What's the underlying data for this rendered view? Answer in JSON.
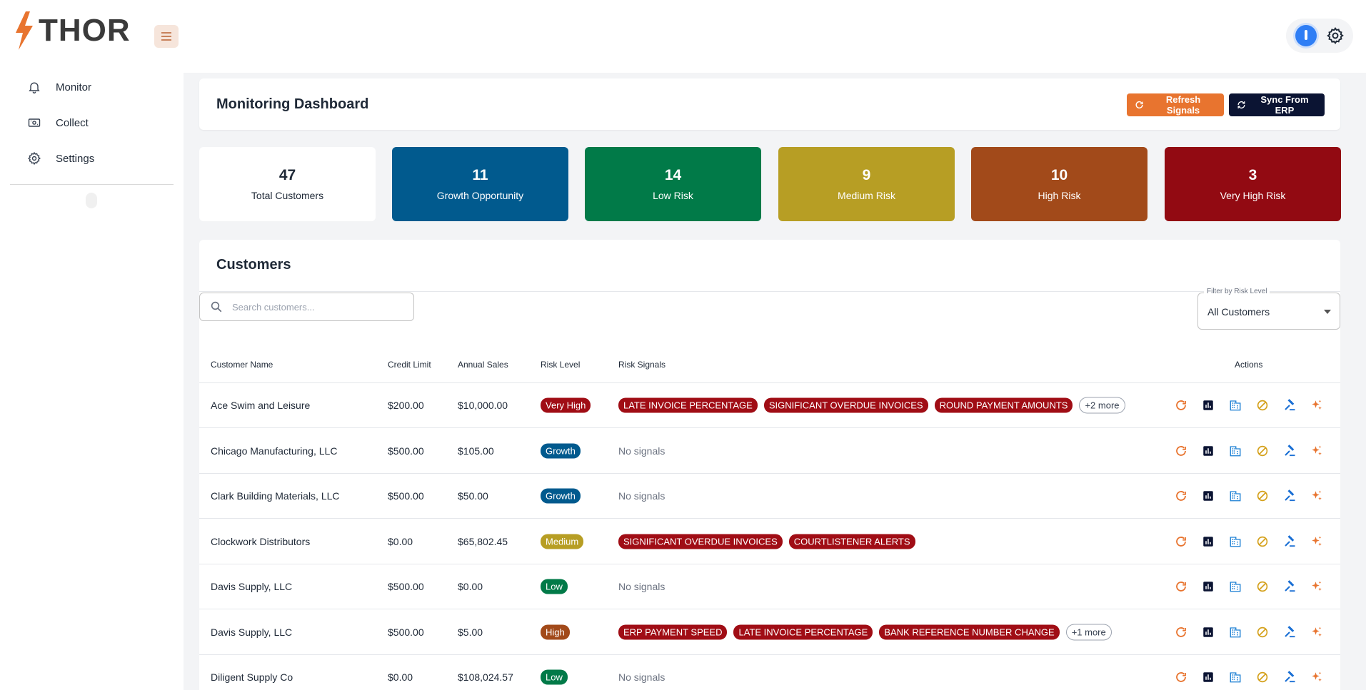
{
  "app": {
    "logo_text": "THOR"
  },
  "sidebar": {
    "items": [
      {
        "label": "Monitor",
        "icon": "bell-icon"
      },
      {
        "label": "Collect",
        "icon": "cash-icon"
      },
      {
        "label": "Settings",
        "icon": "gear-icon"
      }
    ]
  },
  "header": {
    "title": "Monitoring Dashboard",
    "refresh_label": "Refresh Signals",
    "sync_label": "Sync From ERP"
  },
  "stats": [
    {
      "value": "47",
      "label": "Total Customers",
      "color": "#ffffff"
    },
    {
      "value": "11",
      "label": "Growth Opportunity",
      "color": "#015a8e"
    },
    {
      "value": "14",
      "label": "Low Risk",
      "color": "#017a48"
    },
    {
      "value": "9",
      "label": "Medium Risk",
      "color": "#b79e24"
    },
    {
      "value": "10",
      "label": "High Risk",
      "color": "#a24a1a"
    },
    {
      "value": "3",
      "label": "Very High Risk",
      "color": "#920a12"
    }
  ],
  "customers": {
    "title": "Customers",
    "search_placeholder": "Search customers...",
    "filter_label": "Filter by Risk Level",
    "filter_value": "All Customers",
    "columns": [
      "Customer Name",
      "Credit Limit",
      "Annual Sales",
      "Risk Level",
      "Risk Signals",
      "Actions"
    ],
    "no_signals_text": "No signals",
    "rows": [
      {
        "name": "Ace Swim and Leisure",
        "credit": "$200.00",
        "sales": "$10,000.00",
        "risk": "Very High",
        "risk_color": "#a00d15",
        "signals": [
          "LATE INVOICE PERCENTAGE",
          "SIGNIFICANT OVERDUE INVOICES",
          "ROUND PAYMENT AMOUNTS"
        ],
        "more": "+2 more"
      },
      {
        "name": "Chicago Manufacturing, LLC",
        "credit": "$500.00",
        "sales": "$105.00",
        "risk": "Growth",
        "risk_color": "#015a8e",
        "signals": [],
        "more": ""
      },
      {
        "name": "Clark Building Materials, LLC",
        "credit": "$500.00",
        "sales": "$50.00",
        "risk": "Growth",
        "risk_color": "#015a8e",
        "signals": [],
        "more": ""
      },
      {
        "name": "Clockwork Distributors",
        "credit": "$0.00",
        "sales": "$65,802.45",
        "risk": "Medium",
        "risk_color": "#b79e24",
        "signals": [
          "SIGNIFICANT OVERDUE INVOICES",
          "COURTLISTENER ALERTS"
        ],
        "more": ""
      },
      {
        "name": "Davis Supply, LLC",
        "credit": "$500.00",
        "sales": "$0.00",
        "risk": "Low",
        "risk_color": "#017a48",
        "signals": [],
        "more": ""
      },
      {
        "name": "Davis Supply, LLC",
        "credit": "$500.00",
        "sales": "$5.00",
        "risk": "High",
        "risk_color": "#a24a1a",
        "signals": [
          "ERP PAYMENT SPEED",
          "LATE INVOICE PERCENTAGE",
          "BANK REFERENCE NUMBER CHANGE"
        ],
        "more": "+1 more"
      },
      {
        "name": "Diligent Supply Co",
        "credit": "$0.00",
        "sales": "$108,024.57",
        "risk": "Low",
        "risk_color": "#017a48",
        "signals": [],
        "more": ""
      }
    ],
    "action_icons": [
      "refresh-icon",
      "chart-icon",
      "building-icon",
      "block-icon",
      "gavel-icon",
      "sparkle-icon"
    ]
  }
}
